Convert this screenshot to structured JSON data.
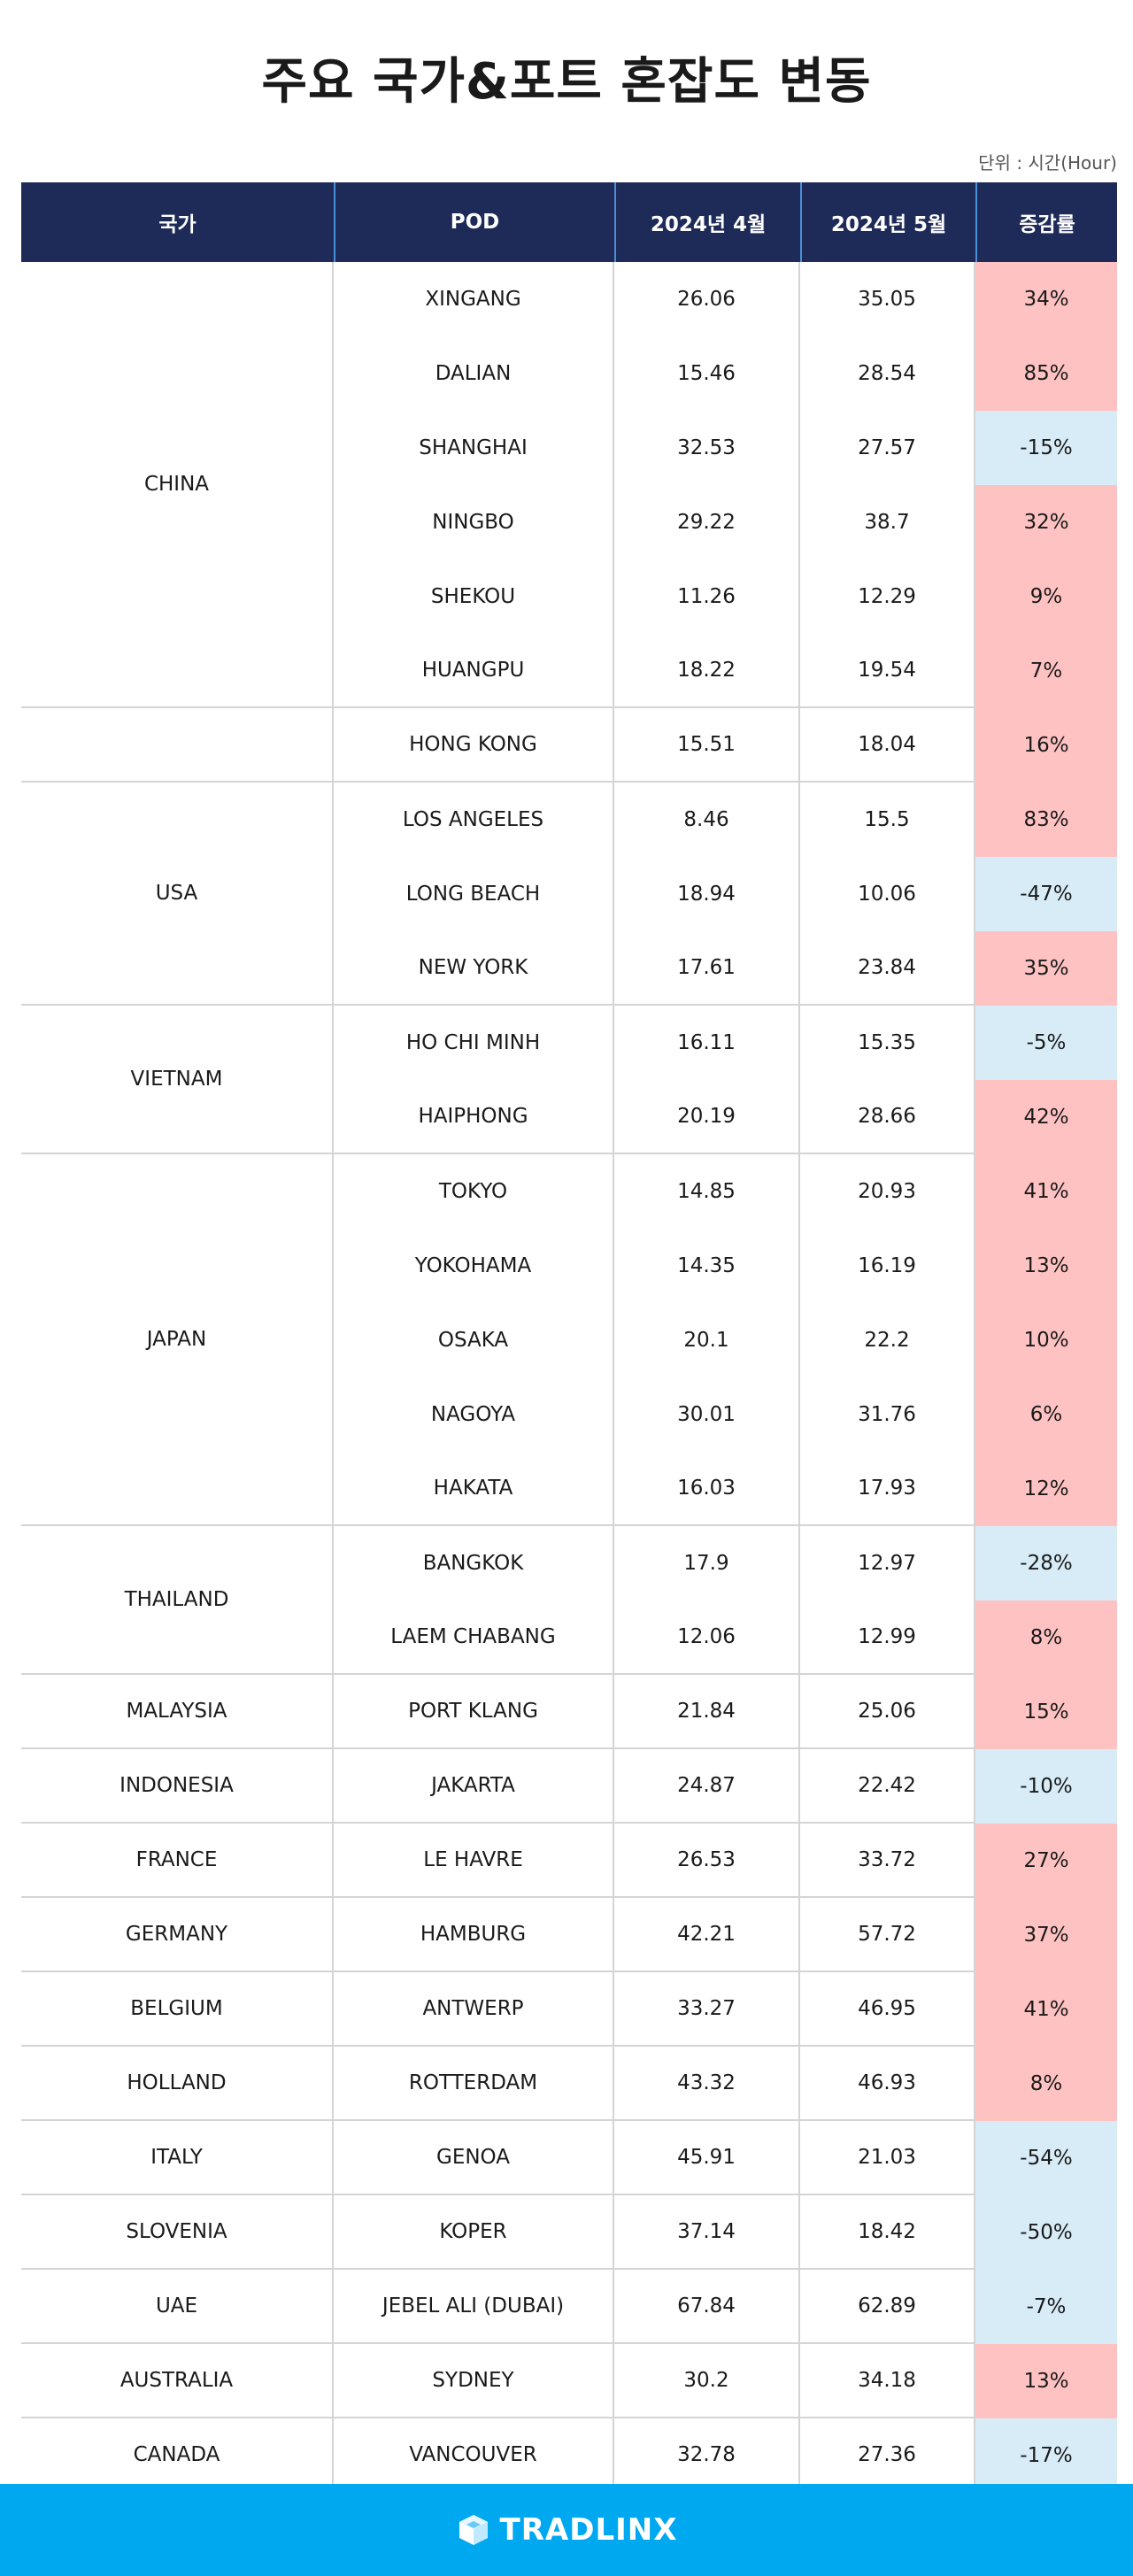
{
  "title": "주요 국가&포트 혼잡도 변동",
  "unit": "단위 : 시간(Hour)",
  "headers": {
    "country": "국가",
    "pod": "POD",
    "apr": "2024년 4월",
    "may": "2024년 5월",
    "change": "증감률"
  },
  "colors": {
    "header_bg": "#1e2a57",
    "increase": "#ffc2c2",
    "decrease": "#d8ecf8",
    "footer_bg": "#00a8f0"
  },
  "groups": [
    {
      "country": "CHINA",
      "rows": [
        {
          "pod": "XINGANG",
          "apr": "26.06",
          "may": "35.05",
          "change": "34%",
          "trend": "up"
        },
        {
          "pod": "DALIAN",
          "apr": "15.46",
          "may": "28.54",
          "change": "85%",
          "trend": "up"
        },
        {
          "pod": "SHANGHAI",
          "apr": "32.53",
          "may": "27.57",
          "change": "-15%",
          "trend": "down"
        },
        {
          "pod": "NINGBO",
          "apr": "29.22",
          "may": "38.7",
          "change": "32%",
          "trend": "up"
        },
        {
          "pod": "SHEKOU",
          "apr": "11.26",
          "may": "12.29",
          "change": "9%",
          "trend": "up"
        },
        {
          "pod": "HUANGPU",
          "apr": "18.22",
          "may": "19.54",
          "change": "7%",
          "trend": "up"
        }
      ]
    },
    {
      "country": "",
      "rows": [
        {
          "pod": "HONG KONG",
          "apr": "15.51",
          "may": "18.04",
          "change": "16%",
          "trend": "up"
        }
      ]
    },
    {
      "country": "USA",
      "rows": [
        {
          "pod": "LOS ANGELES",
          "apr": "8.46",
          "may": "15.5",
          "change": "83%",
          "trend": "up"
        },
        {
          "pod": "LONG BEACH",
          "apr": "18.94",
          "may": "10.06",
          "change": "-47%",
          "trend": "down"
        },
        {
          "pod": "NEW YORK",
          "apr": "17.61",
          "may": "23.84",
          "change": "35%",
          "trend": "up"
        }
      ]
    },
    {
      "country": "VIETNAM",
      "rows": [
        {
          "pod": "HO CHI MINH",
          "apr": "16.11",
          "may": "15.35",
          "change": "-5%",
          "trend": "down"
        },
        {
          "pod": "HAIPHONG",
          "apr": "20.19",
          "may": "28.66",
          "change": "42%",
          "trend": "up"
        }
      ]
    },
    {
      "country": "JAPAN",
      "rows": [
        {
          "pod": "TOKYO",
          "apr": "14.85",
          "may": "20.93",
          "change": "41%",
          "trend": "up"
        },
        {
          "pod": "YOKOHAMA",
          "apr": "14.35",
          "may": "16.19",
          "change": "13%",
          "trend": "up"
        },
        {
          "pod": "OSAKA",
          "apr": "20.1",
          "may": "22.2",
          "change": "10%",
          "trend": "up"
        },
        {
          "pod": "NAGOYA",
          "apr": "30.01",
          "may": "31.76",
          "change": "6%",
          "trend": "up"
        },
        {
          "pod": "HAKATA",
          "apr": "16.03",
          "may": "17.93",
          "change": "12%",
          "trend": "up"
        }
      ]
    },
    {
      "country": "THAILAND",
      "rows": [
        {
          "pod": "BANGKOK",
          "apr": "17.9",
          "may": "12.97",
          "change": "-28%",
          "trend": "down"
        },
        {
          "pod": "LAEM CHABANG",
          "apr": "12.06",
          "may": "12.99",
          "change": "8%",
          "trend": "up"
        }
      ]
    },
    {
      "country": "MALAYSIA",
      "rows": [
        {
          "pod": "PORT KLANG",
          "apr": "21.84",
          "may": "25.06",
          "change": "15%",
          "trend": "up"
        }
      ]
    },
    {
      "country": "INDONESIA",
      "rows": [
        {
          "pod": "JAKARTA",
          "apr": "24.87",
          "may": "22.42",
          "change": "-10%",
          "trend": "down"
        }
      ]
    },
    {
      "country": "FRANCE",
      "rows": [
        {
          "pod": "LE HAVRE",
          "apr": "26.53",
          "may": "33.72",
          "change": "27%",
          "trend": "up"
        }
      ]
    },
    {
      "country": "GERMANY",
      "rows": [
        {
          "pod": "HAMBURG",
          "apr": "42.21",
          "may": "57.72",
          "change": "37%",
          "trend": "up"
        }
      ]
    },
    {
      "country": "BELGIUM",
      "rows": [
        {
          "pod": "ANTWERP",
          "apr": "33.27",
          "may": "46.95",
          "change": "41%",
          "trend": "up"
        }
      ]
    },
    {
      "country": "HOLLAND",
      "rows": [
        {
          "pod": "ROTTERDAM",
          "apr": "43.32",
          "may": "46.93",
          "change": "8%",
          "trend": "up"
        }
      ]
    },
    {
      "country": "ITALY",
      "rows": [
        {
          "pod": "GENOA",
          "apr": "45.91",
          "may": "21.03",
          "change": "-54%",
          "trend": "down"
        }
      ]
    },
    {
      "country": "SLOVENIA",
      "rows": [
        {
          "pod": "KOPER",
          "apr": "37.14",
          "may": "18.42",
          "change": "-50%",
          "trend": "down"
        }
      ]
    },
    {
      "country": "UAE",
      "rows": [
        {
          "pod": "JEBEL ALI (DUBAI)",
          "apr": "67.84",
          "may": "62.89",
          "change": "-7%",
          "trend": "down"
        }
      ]
    },
    {
      "country": "AUSTRALIA",
      "rows": [
        {
          "pod": "SYDNEY",
          "apr": "30.2",
          "may": "34.18",
          "change": "13%",
          "trend": "up"
        }
      ]
    },
    {
      "country": "CANADA",
      "rows": [
        {
          "pod": "VANCOUVER",
          "apr": "32.78",
          "may": "27.36",
          "change": "-17%",
          "trend": "down"
        }
      ]
    }
  ],
  "footer": {
    "brand": "TRADLINX",
    "logo_icon": "cube-icon"
  }
}
